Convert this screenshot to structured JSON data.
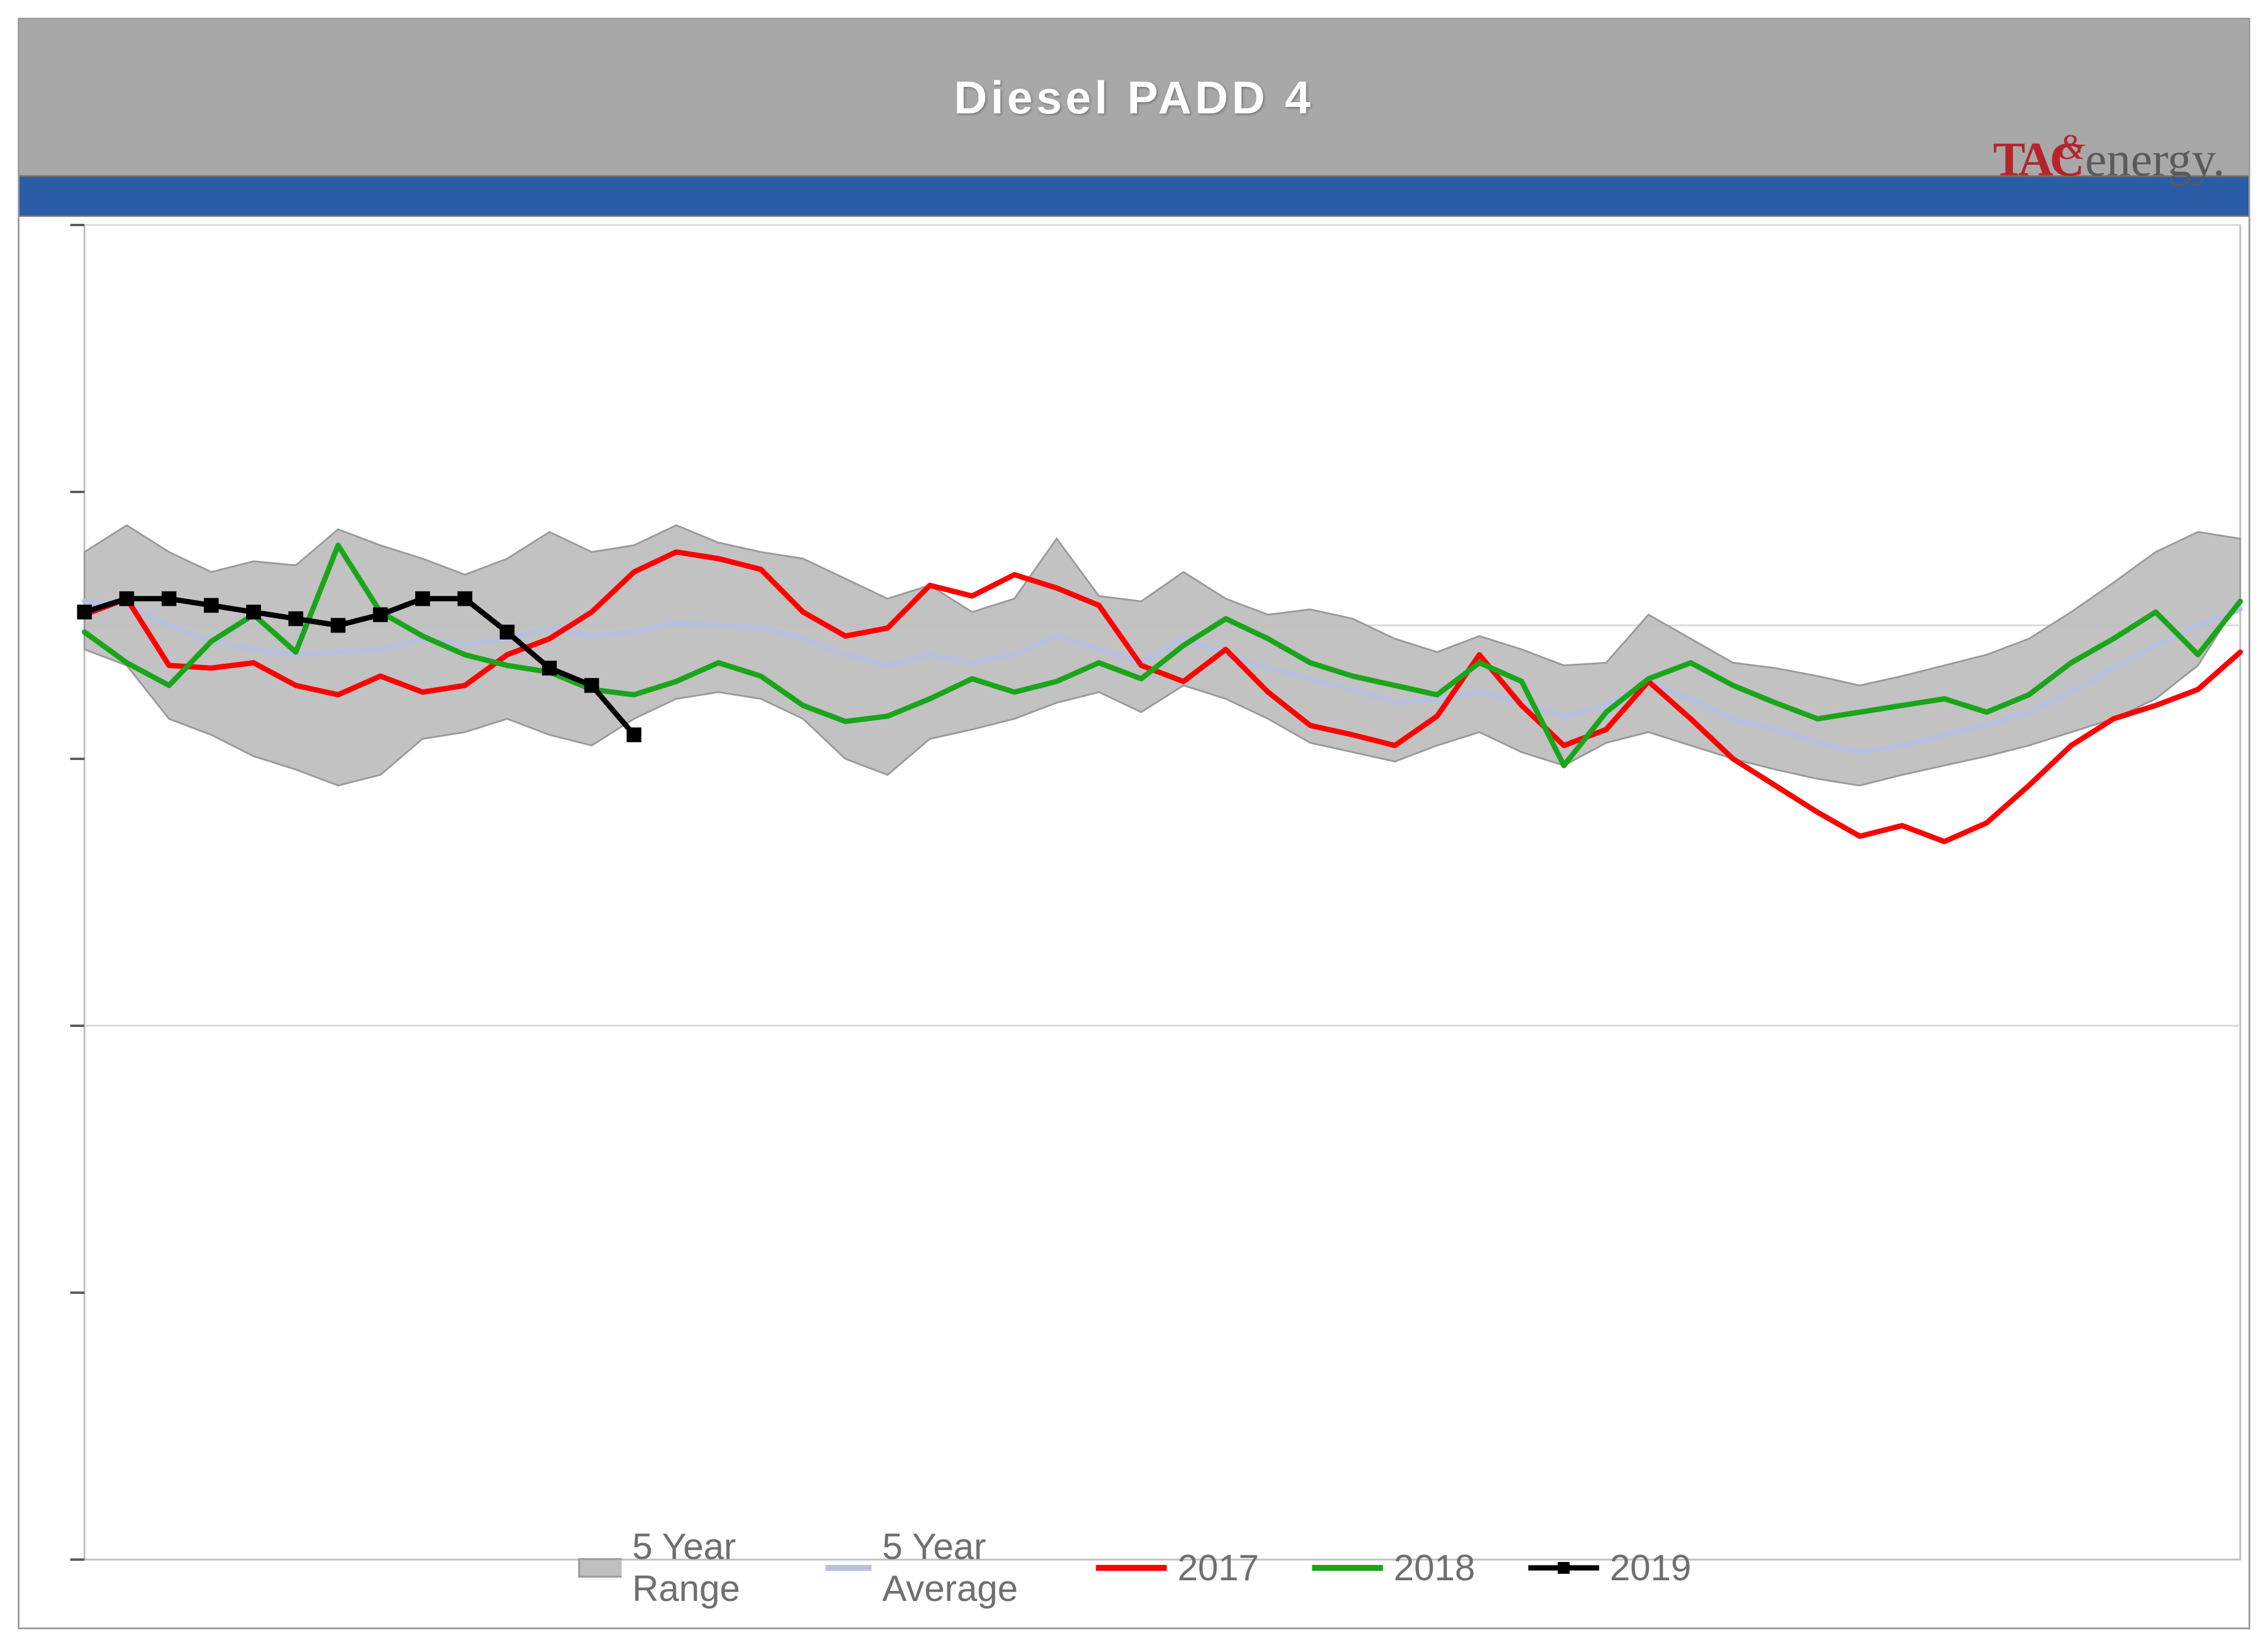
{
  "title": "Diesel  PADD  4",
  "logo": {
    "left": "TAC",
    "right": "energy"
  },
  "chart": {
    "type": "line",
    "background_color": "#ffffff",
    "grid_color": "#d9d9d9",
    "ylim": [
      0,
      10
    ],
    "gridlines_y": [
      4,
      7,
      10
    ],
    "ticks_y": [
      0,
      2,
      4,
      6,
      8,
      10
    ],
    "n_points": 52,
    "title_fontsize": 78,
    "legend_fontsize": 62,
    "line_width": 9,
    "marker_size": 12,
    "series": {
      "range": {
        "label": "5 Year Range",
        "fill_color": "#bfbfbf",
        "stroke_color": "#9a9a9a",
        "upper": [
          7.55,
          7.75,
          7.55,
          7.4,
          7.48,
          7.45,
          7.72,
          7.6,
          7.5,
          7.38,
          7.5,
          7.7,
          7.55,
          7.6,
          7.75,
          7.62,
          7.55,
          7.5,
          7.35,
          7.2,
          7.3,
          7.1,
          7.2,
          7.65,
          7.22,
          7.18,
          7.4,
          7.2,
          7.08,
          7.12,
          7.05,
          6.9,
          6.8,
          6.92,
          6.82,
          6.7,
          6.72,
          7.08,
          6.9,
          6.72,
          6.68,
          6.62,
          6.55,
          6.62,
          6.7,
          6.78,
          6.9,
          7.1,
          7.32,
          7.55,
          7.7,
          7.65
        ],
        "lower": [
          6.82,
          6.7,
          6.3,
          6.18,
          6.02,
          5.92,
          5.8,
          5.88,
          6.15,
          6.2,
          6.3,
          6.18,
          6.1,
          6.3,
          6.45,
          6.5,
          6.45,
          6.3,
          6.0,
          5.88,
          6.15,
          6.22,
          6.3,
          6.42,
          6.5,
          6.35,
          6.55,
          6.45,
          6.3,
          6.12,
          6.05,
          5.98,
          6.1,
          6.2,
          6.05,
          5.95,
          6.12,
          6.2,
          6.1,
          6.0,
          5.92,
          5.85,
          5.8,
          5.88,
          5.95,
          6.02,
          6.1,
          6.2,
          6.3,
          6.45,
          6.7,
          7.2
        ]
      },
      "avg": {
        "label": "5 Year Average",
        "color": "#b8c0de",
        "values": [
          7.18,
          7.15,
          7.0,
          6.88,
          6.82,
          6.78,
          6.8,
          6.82,
          6.9,
          6.85,
          6.9,
          6.98,
          6.92,
          6.95,
          7.02,
          7.0,
          6.98,
          6.9,
          6.78,
          6.7,
          6.78,
          6.72,
          6.78,
          6.92,
          6.82,
          6.72,
          6.9,
          6.78,
          6.68,
          6.6,
          6.52,
          6.42,
          6.45,
          6.5,
          6.42,
          6.32,
          6.4,
          6.58,
          6.45,
          6.3,
          6.22,
          6.12,
          6.05,
          6.1,
          6.18,
          6.25,
          6.35,
          6.5,
          6.68,
          6.85,
          7.0,
          7.12
        ]
      },
      "y2017": {
        "label": "2017",
        "color": "#ff0000",
        "values": [
          7.08,
          7.2,
          6.7,
          6.68,
          6.72,
          6.55,
          6.48,
          6.62,
          6.5,
          6.55,
          6.78,
          6.9,
          7.1,
          7.4,
          7.55,
          7.5,
          7.42,
          7.1,
          6.92,
          6.98,
          7.3,
          7.22,
          7.38,
          7.28,
          7.15,
          6.7,
          6.58,
          6.82,
          6.5,
          6.25,
          6.18,
          6.1,
          6.32,
          6.78,
          6.4,
          6.1,
          6.22,
          6.58,
          6.3,
          6.0,
          5.8,
          5.6,
          5.42,
          5.5,
          5.38,
          5.52,
          5.8,
          6.1,
          6.3,
          6.4,
          6.52,
          6.8
        ]
      },
      "y2018": {
        "label": "2018",
        "color": "#1aa51a",
        "values": [
          6.95,
          6.72,
          6.55,
          6.88,
          7.08,
          6.8,
          7.6,
          7.1,
          6.92,
          6.78,
          6.7,
          6.65,
          6.52,
          6.48,
          6.58,
          6.72,
          6.62,
          6.4,
          6.28,
          6.32,
          6.45,
          6.6,
          6.5,
          6.58,
          6.72,
          6.6,
          6.85,
          7.05,
          6.9,
          6.72,
          6.62,
          6.55,
          6.48,
          6.72,
          6.58,
          5.95,
          6.35,
          6.6,
          6.72,
          6.55,
          6.42,
          6.3,
          6.35,
          6.4,
          6.45,
          6.35,
          6.48,
          6.72,
          6.9,
          7.1,
          6.78,
          7.18
        ]
      },
      "y2019": {
        "label": "2019",
        "color": "#000000",
        "has_markers": true,
        "values": [
          7.1,
          7.2,
          7.2,
          7.15,
          7.1,
          7.05,
          7.0,
          7.08,
          7.2,
          7.2,
          6.95,
          6.68,
          6.55,
          6.18
        ]
      }
    }
  },
  "legend": [
    {
      "key": "range",
      "label": "5 Year Range"
    },
    {
      "key": "avg",
      "label": "5 Year Average"
    },
    {
      "key": "y2017",
      "label": "2017"
    },
    {
      "key": "y2018",
      "label": "2018"
    },
    {
      "key": "y2019",
      "label": "2019"
    }
  ]
}
